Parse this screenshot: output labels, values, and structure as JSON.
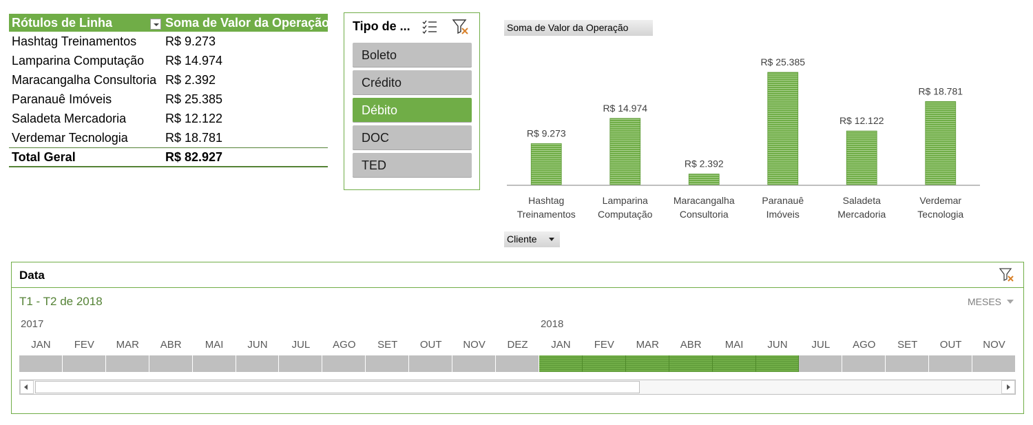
{
  "pivot": {
    "header_col1": "Rótulos de Linha",
    "header_col2": "Soma de Valor da Operação",
    "rows": [
      {
        "label": "Hashtag Treinamentos",
        "value": "R$ 9.273"
      },
      {
        "label": "Lamparina Computação",
        "value": "R$ 14.974"
      },
      {
        "label": "Maracangalha Consultoria",
        "value": "R$ 2.392"
      },
      {
        "label": "Paranauê Imóveis",
        "value": "R$ 25.385"
      },
      {
        "label": "Saladeta Mercadoria",
        "value": "R$ 12.122"
      },
      {
        "label": "Verdemar Tecnologia",
        "value": "R$ 18.781"
      }
    ],
    "total_label": "Total Geral",
    "total_value": "R$ 82.927",
    "accent_color": "#70ad47"
  },
  "slicer": {
    "title": "Tipo de ...",
    "items": [
      {
        "label": "Boleto",
        "selected": false
      },
      {
        "label": "Crédito",
        "selected": false
      },
      {
        "label": "Débito",
        "selected": true
      },
      {
        "label": "DOC",
        "selected": false
      },
      {
        "label": "TED",
        "selected": false
      }
    ],
    "icons": [
      "multi-select-icon",
      "clear-filter-icon"
    ]
  },
  "chart": {
    "value_field_button": "Soma de Valor  da Operação",
    "axis_field_button": "Cliente"
  },
  "chart_data": {
    "type": "bar",
    "categories": [
      [
        "Hashtag",
        "Treinamentos"
      ],
      [
        "Lamparina",
        "Computação"
      ],
      [
        "Maracangalha",
        "Consultoria"
      ],
      [
        "Paranauê",
        "Imóveis"
      ],
      [
        "Saladeta",
        "Mercadoria"
      ],
      [
        "Verdemar",
        "Tecnologia"
      ]
    ],
    "values": [
      9273,
      14974,
      2392,
      25385,
      12122,
      18781
    ],
    "data_labels": [
      "R$ 9.273",
      "R$ 14.974",
      "R$ 2.392",
      "R$ 25.385",
      "R$ 12.122",
      "R$ 18.781"
    ],
    "ylim": [
      0,
      25385
    ],
    "grid": false,
    "legend": "none",
    "bar_color": "#70ad47"
  },
  "timeline": {
    "title": "Data",
    "range_text": "T1 - T2 de 2018",
    "level": "MESES",
    "years": [
      "2017",
      "2018"
    ],
    "months": [
      "JAN",
      "FEV",
      "MAR",
      "ABR",
      "MAI",
      "JUN",
      "JUL",
      "AGO",
      "SET",
      "OUT",
      "NOV",
      "DEZ",
      "JAN",
      "FEV",
      "MAR",
      "ABR",
      "MAI",
      "JUN",
      "JUL",
      "AGO",
      "SET",
      "OUT",
      "NOV"
    ],
    "selected_from_index": 12,
    "selected_to_index": 17
  }
}
